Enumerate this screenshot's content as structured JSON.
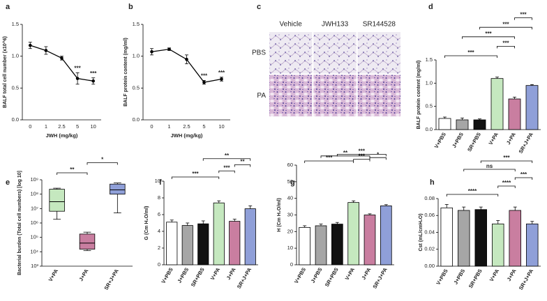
{
  "chart_data": [
    {
      "label": "a",
      "type": "line",
      "y_label": "BALF total cell number (x10^6)",
      "x_label": "JWH (mg/kg)",
      "categories": [
        "0",
        "1",
        "2.5",
        "5",
        "10"
      ],
      "values": [
        1.17,
        1.09,
        0.97,
        0.65,
        0.61
      ],
      "errors": [
        0.05,
        0.06,
        0.03,
        0.09,
        0.05
      ],
      "point_labels": [
        null,
        null,
        null,
        "***",
        "***"
      ],
      "color": "#000000",
      "ylim": [
        0,
        1.5
      ],
      "yticks": [
        {
          "value": 0,
          "label": "0.0"
        },
        {
          "value": 0.5,
          "label": "0.5"
        },
        {
          "value": 1,
          "label": "1.0"
        },
        {
          "value": 1.5,
          "label": "1.5"
        }
      ]
    },
    {
      "label": "b",
      "type": "line",
      "y_label": "BALF protein content (mg/ml)",
      "x_label": "JWH (mg/kg)",
      "categories": [
        "0",
        "1",
        "2.5",
        "5",
        "10"
      ],
      "values": [
        1.07,
        1.11,
        0.95,
        0.59,
        0.64
      ],
      "errors": [
        0.05,
        0.02,
        0.07,
        0.03,
        0.03
      ],
      "point_labels": [
        null,
        null,
        null,
        "***",
        "***"
      ],
      "color": "#000000",
      "ylim": [
        0,
        1.5
      ],
      "yticks": [
        {
          "value": 0,
          "label": "0.0"
        },
        {
          "value": 0.5,
          "label": "0.5"
        },
        {
          "value": 1,
          "label": "1.0"
        },
        {
          "value": 1.5,
          "label": "1.5"
        }
      ]
    },
    {
      "label": "c",
      "type": "micrograph",
      "columns": [
        "Vehicle",
        "JWH133",
        "SR144528"
      ],
      "rows": [
        "PBS",
        "PA"
      ]
    },
    {
      "label": "d",
      "type": "bar",
      "y_label": "BALF protein content (mg/ml)",
      "categories": [
        "V+PBS",
        "J+PBS",
        "SR+PBS",
        "V+PA",
        "J+PA",
        "SR+J+PA"
      ],
      "values": [
        0.24,
        0.21,
        0.21,
        1.1,
        0.66,
        0.95
      ],
      "errors": [
        0.03,
        0.04,
        0.02,
        0.03,
        0.04,
        0.02
      ],
      "colors": [
        "#ffffff",
        "#a6a6a6",
        "#111111",
        "#c5e8bf",
        "#c97ea0",
        "#8f9fd8"
      ],
      "ylim": [
        0,
        1.5
      ],
      "yticks": [
        {
          "value": 0,
          "label": "0.0"
        },
        {
          "value": 0.5,
          "label": "0.5"
        },
        {
          "value": 1,
          "label": "1.0"
        },
        {
          "value": 1.5,
          "label": "1.5"
        }
      ],
      "brackets": [
        {
          "from": "V+PBS",
          "to": "V+PA",
          "label": "***"
        },
        {
          "from": "V+PA",
          "to": "J+PA",
          "label": "***"
        },
        {
          "from": "J+PBS",
          "to": "J+PA",
          "label": "***"
        },
        {
          "from": "SR+PBS",
          "to": "SR+J+PA",
          "label": "***"
        },
        {
          "from": "J+PA",
          "to": "SR+J+PA",
          "label": "***"
        }
      ]
    },
    {
      "label": "e",
      "type": "box",
      "y_label": "Bacterial burden (Total cell numbers) [log 10]",
      "log_scale": true,
      "categories": [
        "V+PA",
        "J+PA",
        "SR+J+PA"
      ],
      "colors": [
        "#c5e8bf",
        "#c97ea0",
        "#8f9fd8"
      ],
      "min": [
        1800000,
        12000,
        5000000
      ],
      "q1": [
        6500000,
        15000,
        100000000
      ],
      "median": [
        30000000,
        40000,
        200000000
      ],
      "q3": [
        220000000,
        170000,
        500000000
      ],
      "max": [
        260000000,
        230000,
        600000000
      ],
      "ylim": [
        1000,
        1000000000
      ],
      "yticks": [
        {
          "value": 1000,
          "label": "10³"
        },
        {
          "value": 10000,
          "label": "10⁴"
        },
        {
          "value": 100000,
          "label": "10⁵"
        },
        {
          "value": 1000000,
          "label": "10⁶"
        },
        {
          "value": 10000000,
          "label": "10⁷"
        },
        {
          "value": 100000000,
          "label": "10⁸"
        },
        {
          "value": 1000000000,
          "label": "10⁹"
        }
      ],
      "brackets": [
        {
          "from": "V+PA",
          "to": "J+PA",
          "label": "**"
        },
        {
          "from": "J+PA",
          "to": "SR+J+PA",
          "label": "*"
        }
      ]
    },
    {
      "label": "f",
      "type": "bar",
      "y_label": "G (Cm H₂O/ml)",
      "categories": [
        "V+PBS",
        "J+PBS",
        "SR+PBS",
        "V+PA",
        "J+PA",
        "SR+J+PA"
      ],
      "values": [
        5.1,
        4.7,
        4.9,
        7.4,
        5.2,
        6.7
      ],
      "errors": [
        0.25,
        0.3,
        0.35,
        0.25,
        0.25,
        0.35
      ],
      "colors": [
        "#ffffff",
        "#a6a6a6",
        "#111111",
        "#c5e8bf",
        "#c97ea0",
        "#8f9fd8"
      ],
      "ylim": [
        0,
        10
      ],
      "yticks": [
        0,
        2,
        4,
        6,
        8,
        10
      ],
      "brackets": [
        {
          "from": "V+PBS",
          "to": "V+PA",
          "label": "***"
        },
        {
          "from": "V+PA",
          "to": "J+PA",
          "label": "***"
        },
        {
          "from": "J+PA",
          "to": "SR+J+PA",
          "label": "**"
        },
        {
          "from": "SR+PBS",
          "to": "SR+J+PA",
          "label": "**"
        }
      ]
    },
    {
      "label": "g",
      "type": "bar",
      "y_label": "H (Cm H₂O/ml)",
      "categories": [
        "V+PBS",
        "J+PBS",
        "SR+PBS",
        "V+PA",
        "J+PA",
        "SR+J+PA"
      ],
      "values": [
        22.5,
        23.5,
        24.5,
        37.5,
        30,
        35.5
      ],
      "errors": [
        1,
        1,
        1,
        1,
        0.7,
        0.7
      ],
      "colors": [
        "#ffffff",
        "#a6a6a6",
        "#111111",
        "#c5e8bf",
        "#c97ea0",
        "#8f9fd8"
      ],
      "ylim": [
        0,
        60
      ],
      "yticks": [
        0,
        10,
        20,
        30,
        40,
        50,
        60
      ],
      "brackets": [
        {
          "from": "V+PBS",
          "to": "V+PA",
          "label": "***"
        },
        {
          "from": "V+PA",
          "to": "J+PA",
          "label": "***"
        },
        {
          "from": "J+PA",
          "to": "SR+J+PA",
          "label": "*"
        },
        {
          "from": "J+PBS",
          "to": "J+PA",
          "label": "**"
        },
        {
          "from": "SR+PBS",
          "to": "SR+J+PA",
          "label": "***"
        }
      ]
    },
    {
      "label": "h",
      "type": "bar",
      "y_label": "Cst (mL/cmH₂O)",
      "categories": [
        "V+PBS",
        "J+PBS",
        "SR+PBS",
        "V+PA",
        "J+PA",
        "SR+J+PA"
      ],
      "values": [
        0.069,
        0.066,
        0.067,
        0.05,
        0.066,
        0.05
      ],
      "errors": [
        0.004,
        0.004,
        0.003,
        0.004,
        0.004,
        0.003
      ],
      "colors": [
        "#ffffff",
        "#a6a6a6",
        "#111111",
        "#c5e8bf",
        "#c97ea0",
        "#8f9fd8"
      ],
      "ylim": [
        0,
        0.08
      ],
      "yticks": [
        {
          "value": 0,
          "label": "0.00"
        },
        {
          "value": 0.02,
          "label": "0.02"
        },
        {
          "value": 0.04,
          "label": "0.04"
        },
        {
          "value": 0.06,
          "label": "0.06"
        },
        {
          "value": 0.08,
          "label": "0.08"
        }
      ],
      "brackets": [
        {
          "from": "V+PBS",
          "to": "V+PA",
          "label": "****"
        },
        {
          "from": "V+PA",
          "to": "J+PA",
          "label": "****"
        },
        {
          "from": "J+PA",
          "to": "SR+J+PA",
          "label": "***"
        },
        {
          "from": "J+PBS",
          "to": "J+PA",
          "label": "ns"
        },
        {
          "from": "SR+PBS",
          "to": "SR+J+PA",
          "label": "***"
        }
      ]
    }
  ]
}
